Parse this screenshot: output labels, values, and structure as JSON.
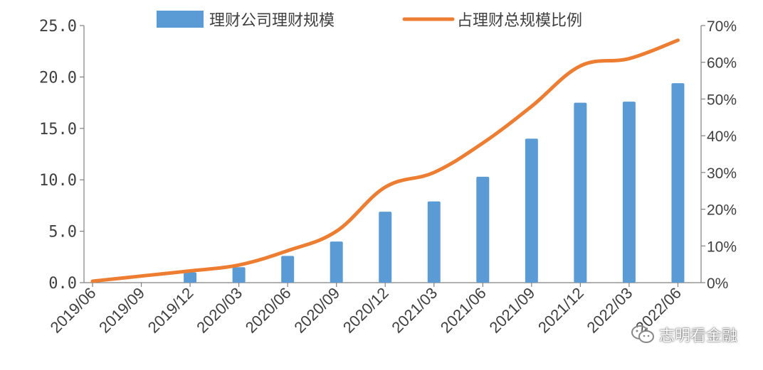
{
  "chart_data": {
    "type": "bar+line",
    "categories": [
      "2019/06",
      "2019/09",
      "2019/12",
      "2020/03",
      "2020/06",
      "2020/09",
      "2020/12",
      "2021/03",
      "2021/06",
      "2021/09",
      "2021/12",
      "2022/03",
      "2022/06"
    ],
    "series": [
      {
        "name": "理财公司理财规模",
        "type": "bar",
        "axis": "left",
        "values": [
          0.0,
          0.0,
          1.0,
          1.5,
          2.6,
          4.0,
          6.9,
          7.9,
          10.3,
          14.0,
          17.5,
          17.6,
          19.4
        ]
      },
      {
        "name": "占理财总规模比例",
        "type": "line",
        "axis": "right",
        "values": [
          0.004,
          0.018,
          0.032,
          0.048,
          0.087,
          0.14,
          0.26,
          0.3,
          0.38,
          0.48,
          0.59,
          0.61,
          0.66
        ]
      }
    ],
    "left_axis": {
      "ylim": [
        0,
        25
      ],
      "ticks": [
        "0.0",
        "5.0",
        "10.0",
        "15.0",
        "20.0",
        "25.0"
      ]
    },
    "right_axis": {
      "ylim": [
        0,
        0.7
      ],
      "ticks": [
        "0%",
        "10%",
        "20%",
        "30%",
        "40%",
        "50%",
        "60%",
        "70%"
      ]
    },
    "legend_position": "top-center",
    "grid": false,
    "colors": {
      "bar": "#5B9BD5",
      "line": "#ED7D31",
      "axis": "#808080",
      "text": "#404040"
    }
  },
  "watermark": {
    "text": "志明看金融",
    "icon": "wechat-icon"
  }
}
